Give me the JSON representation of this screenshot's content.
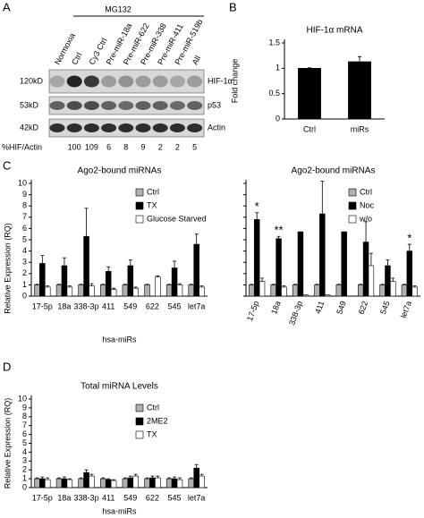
{
  "panels": {
    "a": "A",
    "b": "B",
    "c": "C",
    "d": "D"
  },
  "blot": {
    "treatment": "MG132",
    "lanes": [
      "Normoxia",
      "Ctrl",
      "Cy3 Ctrl",
      "Pre-miR-18a",
      "Pre-miR-622",
      "Pre-miR-338",
      "Pre-miR-411",
      "Pre-miR-519b",
      "All"
    ],
    "rows": [
      {
        "size": "120kD",
        "protein": "HIF-1α"
      },
      {
        "size": "53kD",
        "protein": "p53"
      },
      {
        "size": "42kD",
        "protein": "Actin"
      }
    ],
    "ratio_label": "%HIF/Actin",
    "ratios": [
      100,
      109,
      6,
      8,
      9,
      2,
      2,
      5
    ]
  },
  "chart_data": [
    {
      "type": "bar",
      "title": "HIF-1α mRNA",
      "ylabel": "Fold change",
      "categories": [
        "Ctrl",
        "miRs"
      ],
      "series": [
        {
          "color": "#000000",
          "values": [
            1,
            1.13
          ],
          "errors": [
            0.01,
            0.1
          ]
        }
      ],
      "ylim": [
        0,
        1.5
      ],
      "yticks": [
        0,
        0.5,
        1,
        1.5
      ]
    },
    {
      "type": "bar",
      "title": "Ago2-bound miRNAs",
      "ylabel": "Relative Expression (RQ)",
      "xlabel": "hsa-miRs",
      "categories": [
        "17-5p",
        "18a",
        "338-3p",
        "411",
        "549",
        "622",
        "545",
        "let7a"
      ],
      "series": [
        {
          "name": "Ctrl",
          "color": "#b0b0b0",
          "values": [
            1,
            1,
            1,
            1,
            1,
            1,
            1,
            1
          ],
          "errors": [
            0.05,
            0.05,
            0.05,
            0.05,
            0.05,
            0.05,
            0.05,
            0.05
          ]
        },
        {
          "name": "TX",
          "color": "#000000",
          "values": [
            2.9,
            2.7,
            5.3,
            2.2,
            2.7,
            0,
            2.5,
            4.6
          ],
          "errors": [
            0.7,
            0.7,
            2.5,
            0.4,
            0.5,
            0,
            0.6,
            0.9
          ]
        },
        {
          "name": "Glucose Starved",
          "color": "#ffffff",
          "values": [
            0.8,
            0.8,
            0.9,
            0.6,
            0.7,
            1.7,
            1.0,
            0.8
          ],
          "errors": [
            0.1,
            0.1,
            0.2,
            0.1,
            0.1,
            0.1,
            0.1,
            0.1
          ]
        }
      ],
      "ylim": [
        0,
        10
      ],
      "yticks": [
        0,
        1,
        2,
        3,
        4,
        5,
        6,
        7,
        8,
        9,
        10
      ],
      "legend": "upper right",
      "xtick_rotation": 0,
      "show_ytick_labels": true
    },
    {
      "type": "bar",
      "title": "Ago2-bound miRNAs",
      "categories": [
        "17-5p",
        "18a",
        "338-3p",
        "411",
        "549",
        "622",
        "545",
        "let7a"
      ],
      "series": [
        {
          "name": "Ctrl",
          "color": "#b0b0b0",
          "values": [
            1,
            1,
            1,
            1,
            1,
            1,
            1,
            1
          ],
          "errors": [
            0.05,
            0.05,
            0.05,
            0.05,
            0.05,
            0.05,
            0.05,
            0.05
          ]
        },
        {
          "name": "Noc",
          "color": "#000000",
          "values": [
            6.8,
            5.1,
            5.7,
            7.3,
            5.7,
            4.8,
            2.7,
            4.0
          ],
          "errors": [
            0.6,
            0.2,
            0,
            2.9,
            0,
            1.8,
            0.5,
            0.6
          ]
        },
        {
          "name": "w/o",
          "color": "#ffffff",
          "values": [
            1.3,
            0.8,
            0.1,
            0.1,
            0,
            2.7,
            1.3,
            0.8
          ],
          "errors": [
            0.3,
            0.1,
            0,
            0,
            0,
            1.1,
            0.3,
            0.1
          ]
        }
      ],
      "annotations": [
        {
          "text": "*",
          "x": "17-5p"
        },
        {
          "text": "**",
          "x": "18a"
        },
        {
          "text": "*",
          "x": "let7a"
        }
      ],
      "ylim": [
        0,
        10
      ],
      "yticks": [
        0,
        1,
        2,
        3,
        4,
        5,
        6,
        7,
        8,
        9,
        10
      ],
      "legend": "upper right",
      "xtick_rotation": -70,
      "show_ytick_labels": false
    },
    {
      "type": "bar",
      "title": "Total miRNA Levels",
      "ylabel": "Relative Expression (RQ)",
      "xlabel": "hsa-miRs",
      "categories": [
        "17-5p",
        "18a",
        "338-3p",
        "411",
        "549",
        "622",
        "545",
        "let7a"
      ],
      "series": [
        {
          "name": "Ctrl",
          "color": "#b0b0b0",
          "values": [
            1,
            1,
            1,
            1,
            1,
            1,
            1,
            1
          ],
          "errors": [
            0.1,
            0.1,
            0.1,
            0.1,
            0.1,
            0.1,
            0.1,
            0.1
          ]
        },
        {
          "name": "2ME2",
          "color": "#000000",
          "values": [
            1.0,
            1.0,
            1.7,
            0.9,
            1.1,
            1.1,
            1.0,
            2.2
          ],
          "errors": [
            0.2,
            0.2,
            0.3,
            0.1,
            0.2,
            0.2,
            0.2,
            0.4
          ]
        },
        {
          "name": "TX",
          "color": "#ffffff",
          "values": [
            0.9,
            0.9,
            1.3,
            0.8,
            1.3,
            1.1,
            0.9,
            1.3
          ],
          "errors": [
            0.2,
            0.1,
            0.2,
            0.1,
            0.2,
            0.2,
            0.2,
            0.2
          ]
        }
      ],
      "ylim": [
        0,
        10
      ],
      "yticks": [
        0,
        1,
        2,
        3,
        4,
        5,
        6,
        7,
        8,
        9,
        10
      ],
      "legend": "upper right",
      "xtick_rotation": 0,
      "show_ytick_labels": true
    }
  ]
}
